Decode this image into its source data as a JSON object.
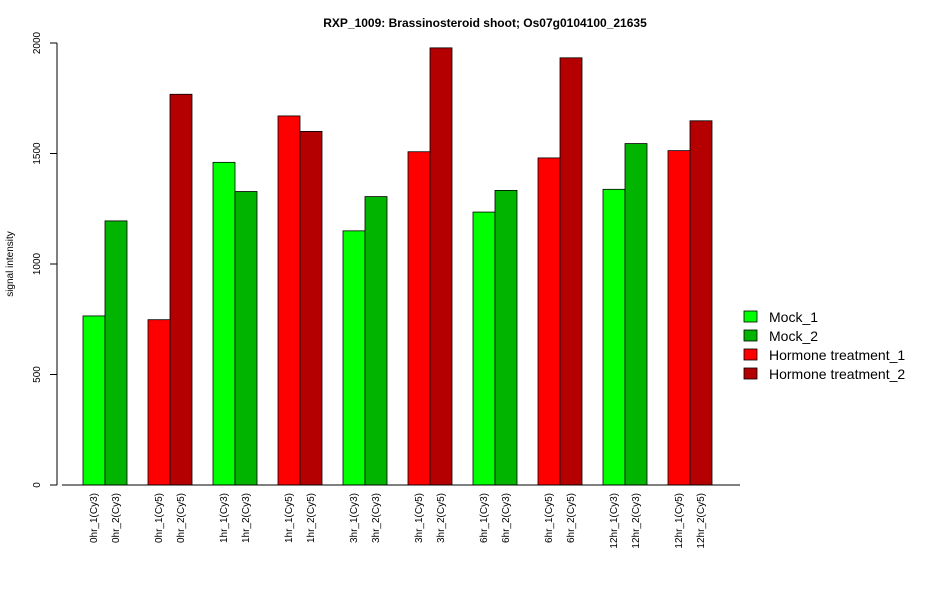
{
  "chart_data": {
    "type": "bar",
    "title": "RXP_1009: Brassinosteroid shoot; Os07g0104100_21635",
    "xlabel": "",
    "ylabel": "signal intensity",
    "ylim": [
      0,
      2000
    ],
    "yticks": [
      0,
      500,
      1000,
      1500,
      2000
    ],
    "grid": false,
    "legend_position": "right",
    "groups": [
      {
        "bars": [
          {
            "label": "0hr_1(Cy3)",
            "value": 765,
            "series": "Mock_1"
          },
          {
            "label": "0hr_2(Cy3)",
            "value": 1195,
            "series": "Mock_2"
          }
        ]
      },
      {
        "bars": [
          {
            "label": "0hr_1(Cy5)",
            "value": 748,
            "series": "Hormone treatment_1"
          },
          {
            "label": "0hr_2(Cy5)",
            "value": 1768,
            "series": "Hormone treatment_2"
          }
        ]
      },
      {
        "bars": [
          {
            "label": "1hr_1(Cy3)",
            "value": 1460,
            "series": "Mock_1"
          },
          {
            "label": "1hr_2(Cy3)",
            "value": 1328,
            "series": "Mock_2"
          }
        ]
      },
      {
        "bars": [
          {
            "label": "1hr_1(Cy5)",
            "value": 1670,
            "series": "Hormone treatment_1"
          },
          {
            "label": "1hr_2(Cy5)",
            "value": 1600,
            "series": "Hormone treatment_2"
          }
        ]
      },
      {
        "bars": [
          {
            "label": "3hr_1(Cy3)",
            "value": 1150,
            "series": "Mock_1"
          },
          {
            "label": "3hr_2(Cy3)",
            "value": 1305,
            "series": "Mock_2"
          }
        ]
      },
      {
        "bars": [
          {
            "label": "3hr_1(Cy5)",
            "value": 1508,
            "series": "Hormone treatment_1"
          },
          {
            "label": "3hr_2(Cy5)",
            "value": 1978,
            "series": "Hormone treatment_2"
          }
        ]
      },
      {
        "bars": [
          {
            "label": "6hr_1(Cy3)",
            "value": 1235,
            "series": "Mock_1"
          },
          {
            "label": "6hr_2(Cy3)",
            "value": 1333,
            "series": "Mock_2"
          }
        ]
      },
      {
        "bars": [
          {
            "label": "6hr_1(Cy5)",
            "value": 1480,
            "series": "Hormone treatment_1"
          },
          {
            "label": "6hr_2(Cy5)",
            "value": 1933,
            "series": "Hormone treatment_2"
          }
        ]
      },
      {
        "bars": [
          {
            "label": "12hr_1(Cy3)",
            "value": 1338,
            "series": "Mock_1"
          },
          {
            "label": "12hr_2(Cy3)",
            "value": 1545,
            "series": "Mock_2"
          }
        ]
      },
      {
        "bars": [
          {
            "label": "12hr_1(Cy5)",
            "value": 1513,
            "series": "Hormone treatment_1"
          },
          {
            "label": "12hr_2(Cy5)",
            "value": 1648,
            "series": "Hormone treatment_2"
          }
        ]
      }
    ],
    "legend": [
      {
        "name": "Mock_1",
        "color": "#00ff00"
      },
      {
        "name": "Mock_2",
        "color": "#00b400"
      },
      {
        "name": "Hormone treatment_1",
        "color": "#ff0000"
      },
      {
        "name": "Hormone treatment_2",
        "color": "#b40000"
      }
    ]
  }
}
